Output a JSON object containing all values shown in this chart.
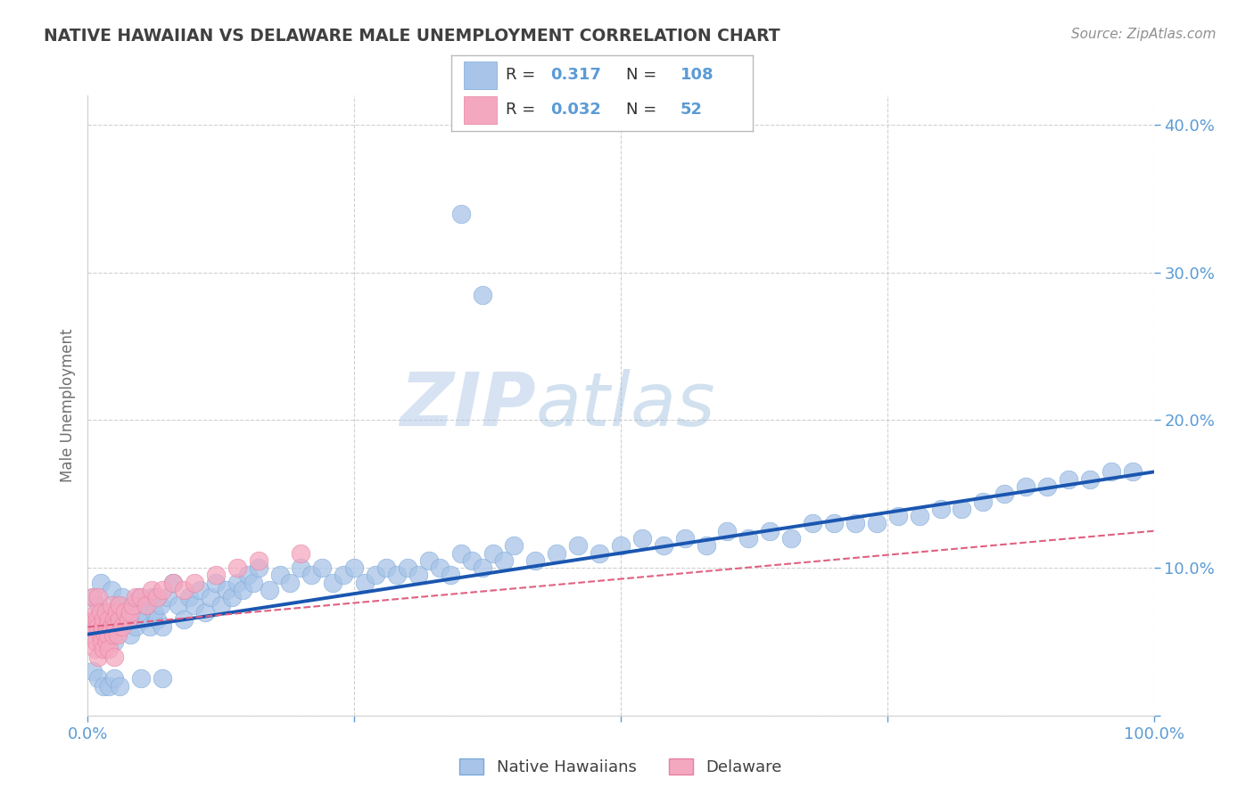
{
  "title": "NATIVE HAWAIIAN VS DELAWARE MALE UNEMPLOYMENT CORRELATION CHART",
  "source_text": "Source: ZipAtlas.com",
  "ylabel": "Male Unemployment",
  "xlim": [
    0,
    1.0
  ],
  "ylim": [
    0,
    0.42
  ],
  "blue_color": "#a8c4e8",
  "pink_color": "#f4a8c0",
  "blue_edge_color": "#7ba8d8",
  "pink_edge_color": "#e880a0",
  "blue_line_color": "#1a56b0",
  "pink_line_color": "#e06080",
  "legend_R_blue": "0.317",
  "legend_N_blue": "108",
  "legend_R_pink": "0.032",
  "legend_N_pink": "52",
  "watermark_zip": "ZIP",
  "watermark_atlas": "atlas",
  "blue_scatter_x": [
    0.005,
    0.008,
    0.01,
    0.012,
    0.015,
    0.018,
    0.02,
    0.022,
    0.025,
    0.028,
    0.03,
    0.032,
    0.035,
    0.038,
    0.04,
    0.042,
    0.045,
    0.048,
    0.05,
    0.052,
    0.055,
    0.058,
    0.06,
    0.062,
    0.065,
    0.068,
    0.07,
    0.075,
    0.08,
    0.085,
    0.09,
    0.095,
    0.1,
    0.105,
    0.11,
    0.115,
    0.12,
    0.125,
    0.13,
    0.135,
    0.14,
    0.145,
    0.15,
    0.155,
    0.16,
    0.17,
    0.18,
    0.19,
    0.2,
    0.21,
    0.22,
    0.23,
    0.24,
    0.25,
    0.26,
    0.27,
    0.28,
    0.29,
    0.3,
    0.31,
    0.32,
    0.33,
    0.34,
    0.35,
    0.36,
    0.37,
    0.38,
    0.39,
    0.4,
    0.42,
    0.44,
    0.46,
    0.48,
    0.5,
    0.52,
    0.54,
    0.56,
    0.58,
    0.6,
    0.62,
    0.64,
    0.66,
    0.68,
    0.7,
    0.72,
    0.74,
    0.76,
    0.78,
    0.8,
    0.82,
    0.84,
    0.86,
    0.88,
    0.9,
    0.92,
    0.94,
    0.96,
    0.98,
    0.35,
    0.37,
    0.005,
    0.01,
    0.015,
    0.02,
    0.025,
    0.03,
    0.05,
    0.07
  ],
  "blue_scatter_y": [
    0.08,
    0.06,
    0.075,
    0.09,
    0.055,
    0.07,
    0.065,
    0.085,
    0.05,
    0.075,
    0.06,
    0.08,
    0.07,
    0.065,
    0.055,
    0.075,
    0.06,
    0.08,
    0.07,
    0.065,
    0.075,
    0.06,
    0.08,
    0.07,
    0.065,
    0.075,
    0.06,
    0.08,
    0.09,
    0.075,
    0.065,
    0.08,
    0.075,
    0.085,
    0.07,
    0.08,
    0.09,
    0.075,
    0.085,
    0.08,
    0.09,
    0.085,
    0.095,
    0.09,
    0.1,
    0.085,
    0.095,
    0.09,
    0.1,
    0.095,
    0.1,
    0.09,
    0.095,
    0.1,
    0.09,
    0.095,
    0.1,
    0.095,
    0.1,
    0.095,
    0.105,
    0.1,
    0.095,
    0.11,
    0.105,
    0.1,
    0.11,
    0.105,
    0.115,
    0.105,
    0.11,
    0.115,
    0.11,
    0.115,
    0.12,
    0.115,
    0.12,
    0.115,
    0.125,
    0.12,
    0.125,
    0.12,
    0.13,
    0.13,
    0.13,
    0.13,
    0.135,
    0.135,
    0.14,
    0.14,
    0.145,
    0.15,
    0.155,
    0.155,
    0.16,
    0.16,
    0.165,
    0.165,
    0.34,
    0.285,
    0.03,
    0.025,
    0.02,
    0.02,
    0.025,
    0.02,
    0.025,
    0.025
  ],
  "pink_scatter_x": [
    0.003,
    0.005,
    0.005,
    0.006,
    0.007,
    0.008,
    0.008,
    0.009,
    0.01,
    0.01,
    0.01,
    0.012,
    0.012,
    0.013,
    0.014,
    0.015,
    0.015,
    0.016,
    0.017,
    0.018,
    0.018,
    0.019,
    0.02,
    0.02,
    0.022,
    0.022,
    0.024,
    0.025,
    0.025,
    0.026,
    0.027,
    0.028,
    0.03,
    0.03,
    0.032,
    0.035,
    0.038,
    0.04,
    0.042,
    0.045,
    0.05,
    0.055,
    0.06,
    0.065,
    0.07,
    0.08,
    0.09,
    0.1,
    0.12,
    0.14,
    0.16,
    0.2
  ],
  "pink_scatter_y": [
    0.06,
    0.055,
    0.08,
    0.065,
    0.045,
    0.07,
    0.05,
    0.065,
    0.04,
    0.06,
    0.08,
    0.055,
    0.07,
    0.05,
    0.06,
    0.045,
    0.065,
    0.055,
    0.07,
    0.05,
    0.06,
    0.055,
    0.045,
    0.065,
    0.06,
    0.075,
    0.055,
    0.065,
    0.04,
    0.06,
    0.07,
    0.055,
    0.065,
    0.075,
    0.06,
    0.07,
    0.065,
    0.07,
    0.075,
    0.08,
    0.08,
    0.075,
    0.085,
    0.08,
    0.085,
    0.09,
    0.085,
    0.09,
    0.095,
    0.1,
    0.105,
    0.11
  ],
  "blue_line_x0": 0.0,
  "blue_line_x1": 1.0,
  "blue_line_y0": 0.055,
  "blue_line_y1": 0.165,
  "pink_line_x0": 0.0,
  "pink_line_x1": 1.0,
  "pink_line_y0": 0.06,
  "pink_line_y1": 0.125,
  "background_color": "#ffffff",
  "grid_color": "#d0d0d0",
  "title_color": "#404040",
  "axis_label_color": "#5b9bd5",
  "ylabel_color": "#707070",
  "source_color": "#909090",
  "legend_text_color": "#303030",
  "legend_value_color": "#5b9bd5"
}
